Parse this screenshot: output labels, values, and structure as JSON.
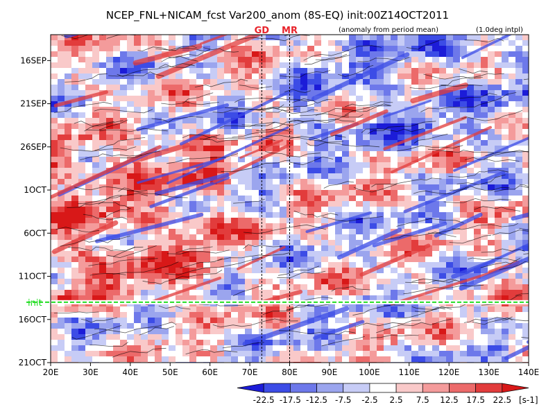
{
  "chart_data": {
    "type": "heatmap",
    "title": "NCEP_FNL+NICAM_fcst Var200_anom (8S-EQ) init:00Z14OCT2011",
    "subtitle_left": "(anomaly from period mean)",
    "subtitle_right": "(1.0deg intpl)",
    "xlabel": "",
    "ylabel": "",
    "x_ticks": [
      {
        "value": 20,
        "label": "20E"
      },
      {
        "value": 30,
        "label": "30E"
      },
      {
        "value": 40,
        "label": "40E"
      },
      {
        "value": 50,
        "label": "50E"
      },
      {
        "value": 60,
        "label": "60E"
      },
      {
        "value": 70,
        "label": "70E"
      },
      {
        "value": 80,
        "label": "80E"
      },
      {
        "value": 90,
        "label": "90E"
      },
      {
        "value": 100,
        "label": "100E"
      },
      {
        "value": 110,
        "label": "110E"
      },
      {
        "value": 120,
        "label": "120E"
      },
      {
        "value": 130,
        "label": "130E"
      },
      {
        "value": 140,
        "label": "140E"
      }
    ],
    "xlim": [
      20,
      140
    ],
    "y_ticks": [
      {
        "value": "2011-09-16",
        "label": "16SEP"
      },
      {
        "value": "2011-09-21",
        "label": "21SEP"
      },
      {
        "value": "2011-09-26",
        "label": "26SEP"
      },
      {
        "value": "2011-10-01",
        "label": "1OCT"
      },
      {
        "value": "2011-10-06",
        "label": "6OCT"
      },
      {
        "value": "2011-10-11",
        "label": "11OCT"
      },
      {
        "value": "2011-10-16",
        "label": "16OCT"
      },
      {
        "value": "2011-10-21",
        "label": "21OCT"
      }
    ],
    "ylim": [
      "2011-09-13",
      "2011-10-21"
    ],
    "markers": [
      {
        "label": "GD",
        "lon": 73
      },
      {
        "label": "MR",
        "lon": 80
      }
    ],
    "init_line": {
      "label": "init",
      "date": "2011-10-14",
      "color": "#22dd22"
    },
    "colorbar": {
      "levels": [
        "-22.5",
        "-17.5",
        "-12.5",
        "-7.5",
        "-2.5",
        "2.5",
        "7.5",
        "12.5",
        "17.5",
        "22.5"
      ],
      "unit": "[s-1]",
      "colors": [
        "#1c1cd8",
        "#3c4ce6",
        "#6d78ea",
        "#9ba5ee",
        "#c7ccf6",
        "#ffffff",
        "#f9c9c9",
        "#f49b9b",
        "#ec6a6a",
        "#e23c3c",
        "#d81818"
      ]
    },
    "grid": false
  }
}
